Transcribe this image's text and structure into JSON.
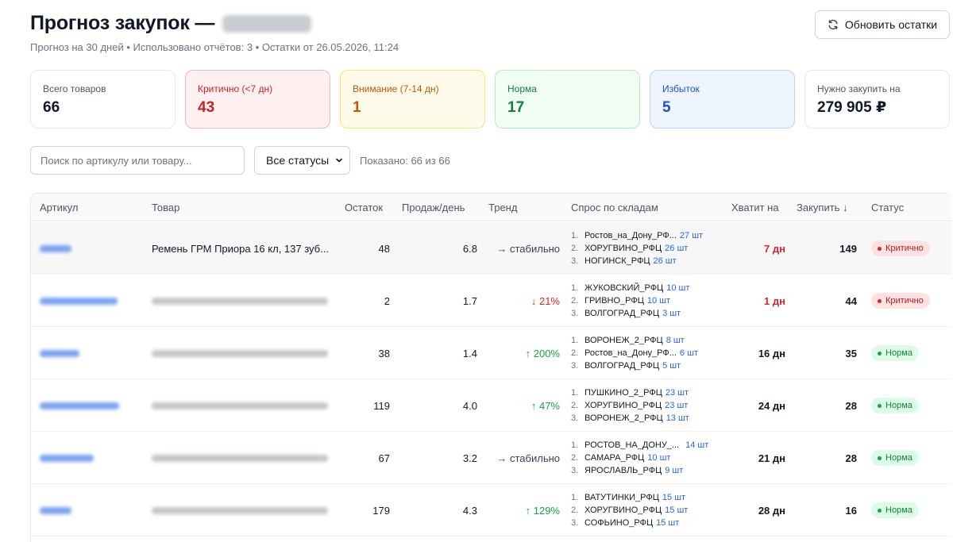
{
  "header": {
    "title": "Прогноз закупок —",
    "subtitle": "Прогноз на 30 дней • Использовано отчётов: 3 • Остатки от 26.05.2026, 11:24",
    "refresh_label": "Обновить остатки"
  },
  "cards": [
    {
      "label": "Всего товаров",
      "value": "66"
    },
    {
      "label": "Критично (<7 дн)",
      "value": "43"
    },
    {
      "label": "Внимание (7-14 дн)",
      "value": "1"
    },
    {
      "label": "Норма",
      "value": "17"
    },
    {
      "label": "Избыток",
      "value": "5"
    },
    {
      "label": "Нужно закупить на",
      "value": "279 905 ₽"
    }
  ],
  "filters": {
    "search_placeholder": "Поиск по артикулу или товару...",
    "status_selected": "Все статусы",
    "shown": "Показано: 66 из 66"
  },
  "table": {
    "headers": {
      "sku": "Артикул",
      "product": "Товар",
      "stock": "Остаток",
      "sales": "Продаж/день",
      "trend": "Тренд",
      "demand": "Спрос по складам",
      "enough": "Хватит на",
      "buy": "Закупить ↓",
      "status": "Статус"
    },
    "rows": [
      {
        "product": "Ремень ГРМ Приора 16 кл, 137 зуб...",
        "stock": "48",
        "sales": "6.8",
        "trend": "→ стабильно",
        "wh": [
          {
            "idx": "1.",
            "name": "Ростов_на_Дону_РФ...",
            "qty": "27 шт"
          },
          {
            "idx": "2.",
            "name": "ХОРУГВИНО_РФЦ",
            "qty": "26 шт"
          },
          {
            "idx": "3.",
            "name": "НОГИНСК_РФЦ",
            "qty": "26 шт"
          }
        ],
        "days": "7 дн",
        "buy": "149",
        "status": "Критично"
      },
      {
        "product": "",
        "stock": "2",
        "sales": "1.7",
        "trend": "↓ 21%",
        "wh": [
          {
            "idx": "1.",
            "name": "ЖУКОВСКИЙ_РФЦ",
            "qty": "10 шт"
          },
          {
            "idx": "2.",
            "name": "ГРИВНО_РФЦ",
            "qty": "10 шт"
          },
          {
            "idx": "3.",
            "name": "ВОЛГОГРАД_РФЦ",
            "qty": "3 шт"
          }
        ],
        "days": "1 дн",
        "buy": "44",
        "status": "Критично"
      },
      {
        "product": "",
        "stock": "38",
        "sales": "1.4",
        "trend": "↑ 200%",
        "wh": [
          {
            "idx": "1.",
            "name": "ВОРОНЕЖ_2_РФЦ",
            "qty": "8 шт"
          },
          {
            "idx": "2.",
            "name": "Ростов_на_Дону_РФ...",
            "qty": "6 шт"
          },
          {
            "idx": "3.",
            "name": "ВОЛГОГРАД_РФЦ",
            "qty": "5 шт"
          }
        ],
        "days": "16 дн",
        "buy": "35",
        "status": "Норма"
      },
      {
        "product": "",
        "stock": "119",
        "sales": "4.0",
        "trend": "↑ 47%",
        "wh": [
          {
            "idx": "1.",
            "name": "ПУШКИНО_2_РФЦ",
            "qty": "23 шт"
          },
          {
            "idx": "2.",
            "name": "ХОРУГВИНО_РФЦ",
            "qty": "23 шт"
          },
          {
            "idx": "3.",
            "name": "ВОРОНЕЖ_2_РФЦ",
            "qty": "13 шт"
          }
        ],
        "days": "24 дн",
        "buy": "28",
        "status": "Норма"
      },
      {
        "product": "",
        "stock": "67",
        "sales": "3.2",
        "trend": "→ стабильно",
        "wh": [
          {
            "idx": "1.",
            "name": "РОСТОВ_НА_ДОНУ_...",
            "qty": "14 шт"
          },
          {
            "idx": "2.",
            "name": "САМАРА_РФЦ",
            "qty": "10 шт"
          },
          {
            "idx": "3.",
            "name": "ЯРОСЛАВЛЬ_РФЦ",
            "qty": "9 шт"
          }
        ],
        "days": "21 дн",
        "buy": "28",
        "status": "Норма"
      },
      {
        "product": "",
        "stock": "179",
        "sales": "4.3",
        "trend": "↑ 129%",
        "wh": [
          {
            "idx": "1.",
            "name": "ВАТУТИНКИ_РФЦ",
            "qty": "15 шт"
          },
          {
            "idx": "2.",
            "name": "ХОРУГВИНО_РФЦ",
            "qty": "15 шт"
          },
          {
            "idx": "3.",
            "name": "СОФЬИНО_РФЦ",
            "qty": "15 шт"
          }
        ],
        "days": "28 дн",
        "buy": "16",
        "status": "Норма"
      }
    ]
  }
}
